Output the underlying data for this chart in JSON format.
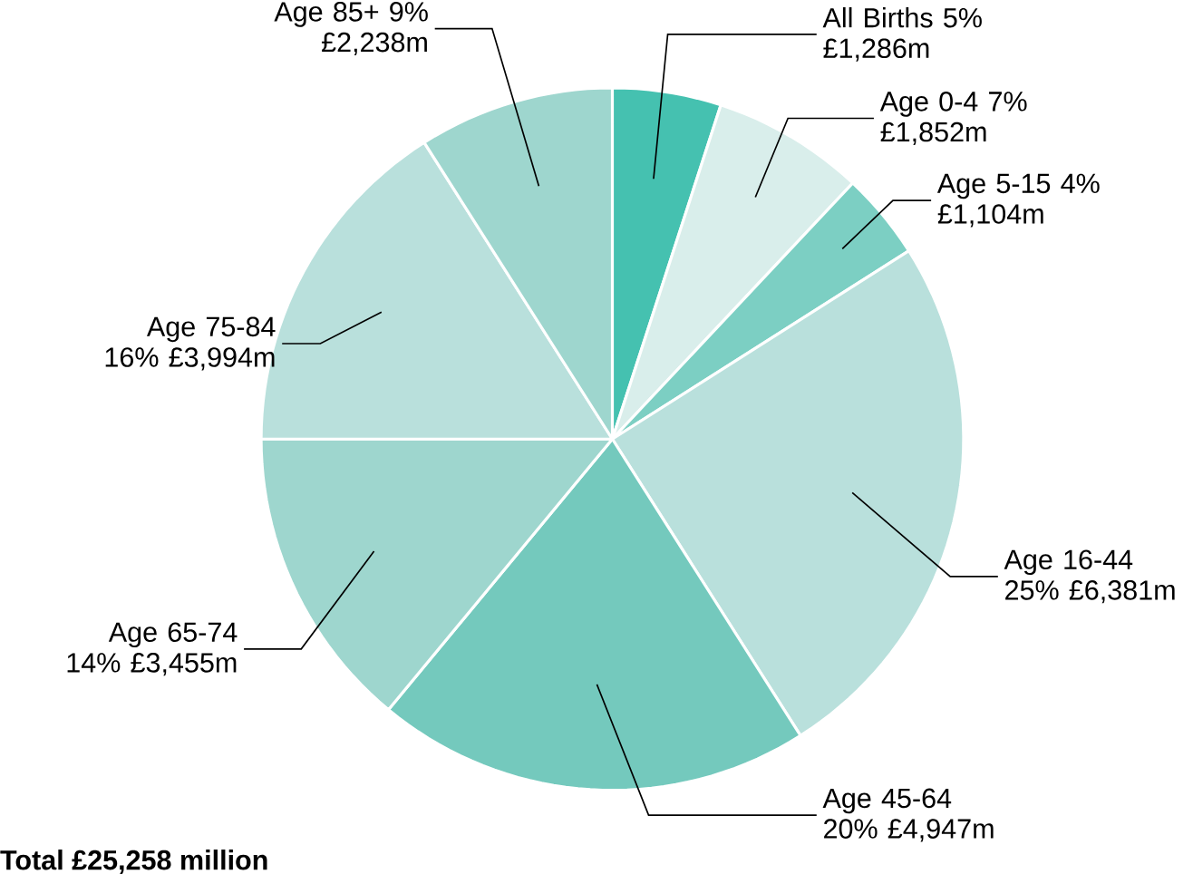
{
  "chart_data": {
    "type": "pie",
    "categories": [
      "All Births",
      "Age 0-4",
      "Age 5-15",
      "Age 16-44",
      "Age 45-64",
      "Age 65-74",
      "Age 75-84",
      "Age 85+"
    ],
    "values": [
      5,
      7,
      4,
      25,
      20,
      14,
      16,
      9
    ],
    "value_labels": [
      "5% £1,286m",
      "7% £1,852m",
      "4% £1,104m",
      "25% £6,381m",
      "20% £4,947m",
      "14% £3,455m",
      "16% £3,994m",
      "9% £2,238m"
    ],
    "colors": [
      "#45c1b0",
      "#d9eeeb",
      "#7ccfc3",
      "#b9e0dc",
      "#74c9bd",
      "#9ed6ce",
      "#b9e0dc",
      "#9ed6ce"
    ],
    "annotations": [
      "**Total £25,258 million**"
    ]
  }
}
